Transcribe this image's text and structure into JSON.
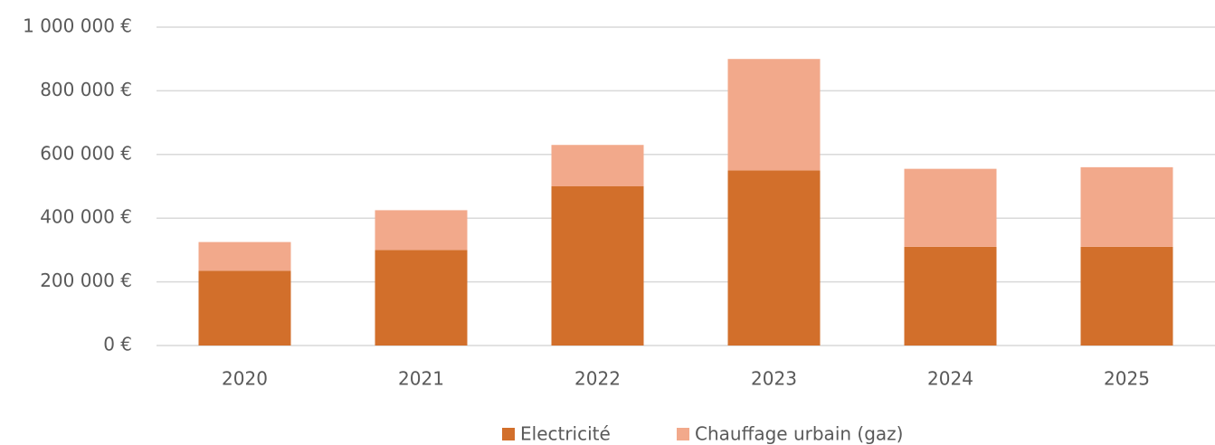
{
  "chart_data": {
    "type": "stacked_bar",
    "categories": [
      "2020",
      "2021",
      "2022",
      "2023",
      "2024",
      "2025"
    ],
    "series": [
      {
        "name": "Electricité",
        "color": "#d26f2b",
        "values": [
          235000,
          300000,
          500000,
          550000,
          310000,
          310000
        ]
      },
      {
        "name": "Chauffage urbain (gaz)",
        "color": "#f2a98b",
        "values": [
          90000,
          125000,
          130000,
          350000,
          245000,
          250000
        ]
      }
    ],
    "ylim": [
      0,
      1000000
    ],
    "yticks": [
      {
        "value": 0,
        "label": "0 €"
      },
      {
        "value": 200000,
        "label": "200 000 €"
      },
      {
        "value": 400000,
        "label": "400 000 €"
      },
      {
        "value": 600000,
        "label": "600 000 €"
      },
      {
        "value": 800000,
        "label": "800 000 €"
      },
      {
        "value": 1000000,
        "label": "1 000 000 €"
      }
    ],
    "grid": true,
    "legend": "bottom"
  }
}
